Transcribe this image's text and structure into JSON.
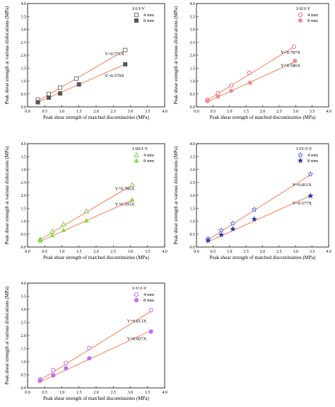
{
  "chart_data": [
    {
      "type": "scatter",
      "xlabel": "Peak shear strength of matched discontinuities (MPa)",
      "ylabel": "Peak shear strength at various dislocations (MPa)",
      "xlim": [
        0,
        4.0
      ],
      "ylim": [
        0,
        4.0
      ],
      "xticks": [
        "0.0",
        "0.5",
        "1.0",
        "1.5",
        "2.0",
        "2.5",
        "3.0",
        "3.5",
        "4.0"
      ],
      "yticks": [
        "0.0",
        "0.5",
        "1.0",
        "1.5",
        "2.0",
        "2.5",
        "3.0",
        "3.5",
        "4.0"
      ],
      "legend_title": "J-I/J-V",
      "legend_position": "top-right",
      "series": [
        {
          "name": "4 mm",
          "marker": "square-open",
          "color": "#555555",
          "x": [
            0.3,
            0.62,
            0.95,
            1.42,
            2.85
          ],
          "y": [
            0.28,
            0.5,
            0.75,
            1.1,
            2.2
          ]
        },
        {
          "name": "8 mm",
          "marker": "square-filled",
          "color": "#555555",
          "x": [
            0.3,
            0.62,
            0.95,
            1.5,
            2.85
          ],
          "y": [
            0.18,
            0.36,
            0.52,
            0.87,
            1.65
          ]
        }
      ],
      "fits": [
        {
          "label": "Y=0.771X",
          "slope": 0.771,
          "x_end": 2.9,
          "color": "#e8774a"
        },
        {
          "label": "Y=0.579X",
          "slope": 0.579,
          "x_end": 2.9,
          "color": "#e8774a"
        }
      ]
    },
    {
      "type": "scatter",
      "xlabel": "Peak shear strength of matched discontinuities (MPa)",
      "ylabel": "Peak shear strength at various dislocations (MPa)",
      "xlim": [
        0,
        4.0
      ],
      "ylim": [
        0,
        4.0
      ],
      "xticks": [
        "0.0",
        "0.5",
        "1.0",
        "1.5",
        "2.0",
        "2.5",
        "3.0",
        "3.5",
        "4.0"
      ],
      "yticks": [
        "0.0",
        "0.5",
        "1.0",
        "1.5",
        "2.0",
        "2.5",
        "3.0",
        "3.5",
        "4.0"
      ],
      "legend_title": "J-II/J-V",
      "legend_position": "top-right",
      "series": [
        {
          "name": "4 mm",
          "marker": "circle-open",
          "color": "#e0506a",
          "x": [
            0.33,
            0.65,
            1.05,
            1.6,
            2.95
          ],
          "y": [
            0.27,
            0.53,
            0.83,
            1.32,
            2.33
          ]
        },
        {
          "name": "8 mm",
          "marker": "circle-filled",
          "color": "#f08a94",
          "x": [
            0.33,
            0.65,
            1.05,
            1.62,
            2.98
          ],
          "y": [
            0.22,
            0.4,
            0.62,
            0.93,
            1.78
          ]
        }
      ],
      "fits": [
        {
          "label": "Y=0.787X",
          "slope": 0.787,
          "x_end": 3.0,
          "color": "#e8774a"
        },
        {
          "label": "Y=0.586X",
          "slope": 0.586,
          "x_end": 3.0,
          "color": "#e8774a"
        }
      ]
    },
    {
      "type": "scatter",
      "xlabel": "Peak shear strength of matched discontinuities (MPa)",
      "ylabel": "Peak shear strength at various dislocations (MPa)",
      "xlim": [
        0,
        4.0
      ],
      "ylim": [
        0,
        4.0
      ],
      "xticks": [
        "0.0",
        "0.5",
        "1.0",
        "1.5",
        "2.0",
        "2.5",
        "3.0",
        "3.5",
        "4.0"
      ],
      "yticks": [
        "0.0",
        "0.5",
        "1.0",
        "1.5",
        "2.0",
        "2.5",
        "3.0",
        "3.5",
        "4.0"
      ],
      "legend_title": "J-III/J-V",
      "legend_position": "top-right",
      "series": [
        {
          "name": "4 mm",
          "marker": "triangle-open",
          "color": "#63c030",
          "x": [
            0.37,
            0.72,
            1.05,
            1.72,
            3.05
          ],
          "y": [
            0.3,
            0.6,
            0.88,
            1.38,
            2.4
          ]
        },
        {
          "name": "8 mm",
          "marker": "triangle-filled",
          "color": "#8ed84a",
          "x": [
            0.37,
            0.72,
            1.05,
            1.72,
            3.05
          ],
          "y": [
            0.25,
            0.45,
            0.65,
            1.02,
            1.82
          ]
        }
      ],
      "fits": [
        {
          "label": "Y=0.786X",
          "slope": 0.786,
          "x_end": 3.1,
          "color": "#e8774a"
        },
        {
          "label": "Y=0.595X",
          "slope": 0.595,
          "x_end": 3.1,
          "color": "#e8774a"
        }
      ]
    },
    {
      "type": "scatter",
      "xlabel": "Peak shear strength of matched discontinuities (MPa)",
      "ylabel": "Peak shear strength at various dislocations (MPa)",
      "xlim": [
        0,
        4.0
      ],
      "ylim": [
        0,
        4.0
      ],
      "xticks": [
        "0.0",
        "0.5",
        "1.0",
        "1.5",
        "2.0",
        "2.5",
        "3.0",
        "3.5",
        "4.0"
      ],
      "yticks": [
        "0.0",
        "0.5",
        "1.0",
        "1.5",
        "2.0",
        "2.5",
        "3.0",
        "3.5",
        "4.0"
      ],
      "legend_title": "J-IV/J-V",
      "legend_position": "top-right",
      "series": [
        {
          "name": "4 mm",
          "marker": "star-open",
          "color": "#3a4fd8",
          "x": [
            0.35,
            0.75,
            1.1,
            1.75,
            3.45
          ],
          "y": [
            0.32,
            0.65,
            0.92,
            1.45,
            2.82
          ]
        },
        {
          "name": "8 mm",
          "marker": "star-filled",
          "color": "#2a3aa8",
          "x": [
            0.35,
            0.75,
            1.1,
            1.75,
            3.45
          ],
          "y": [
            0.25,
            0.47,
            0.7,
            1.08,
            1.98
          ]
        }
      ],
      "fits": [
        {
          "label": "Y=0.811X",
          "slope": 0.811,
          "x_end": 3.5,
          "color": "#e8774a"
        },
        {
          "label": "Y=0.577X",
          "slope": 0.577,
          "x_end": 3.5,
          "color": "#e8774a"
        }
      ]
    },
    {
      "type": "scatter",
      "xlabel": "Peak shear strength of matched discontinuities (MPa)",
      "ylabel": "Peak shear strength at various dislocations (MPa)",
      "xlim": [
        0,
        4.0
      ],
      "ylim": [
        0,
        4.0
      ],
      "xticks": [
        "0.0",
        "0.5",
        "1.0",
        "1.5",
        "2.0",
        "2.5",
        "3.0",
        "3.5",
        "4.0"
      ],
      "yticks": [
        "0.0",
        "0.5",
        "1.0",
        "1.5",
        "2.0",
        "2.5",
        "3.0",
        "3.5",
        "4.0"
      ],
      "legend_title": "J-V/J-V",
      "legend_position": "top-right",
      "series": [
        {
          "name": "4 mm",
          "marker": "hexagon-open",
          "color": "#b05ad8",
          "x": [
            0.37,
            0.75,
            1.12,
            1.8,
            3.6
          ],
          "y": [
            0.33,
            0.68,
            0.95,
            1.52,
            2.97
          ]
        },
        {
          "name": "8 mm",
          "marker": "hexagon-filled",
          "color": "#c070e8",
          "x": [
            0.37,
            0.75,
            1.12,
            1.8,
            3.6
          ],
          "y": [
            0.28,
            0.48,
            0.75,
            1.13,
            2.15
          ]
        }
      ],
      "fits": [
        {
          "label": "Y=0.813X",
          "slope": 0.813,
          "x_end": 3.65,
          "color": "#e8774a"
        },
        {
          "label": "Y=0.607X",
          "slope": 0.607,
          "x_end": 3.65,
          "color": "#e8774a"
        }
      ]
    }
  ]
}
